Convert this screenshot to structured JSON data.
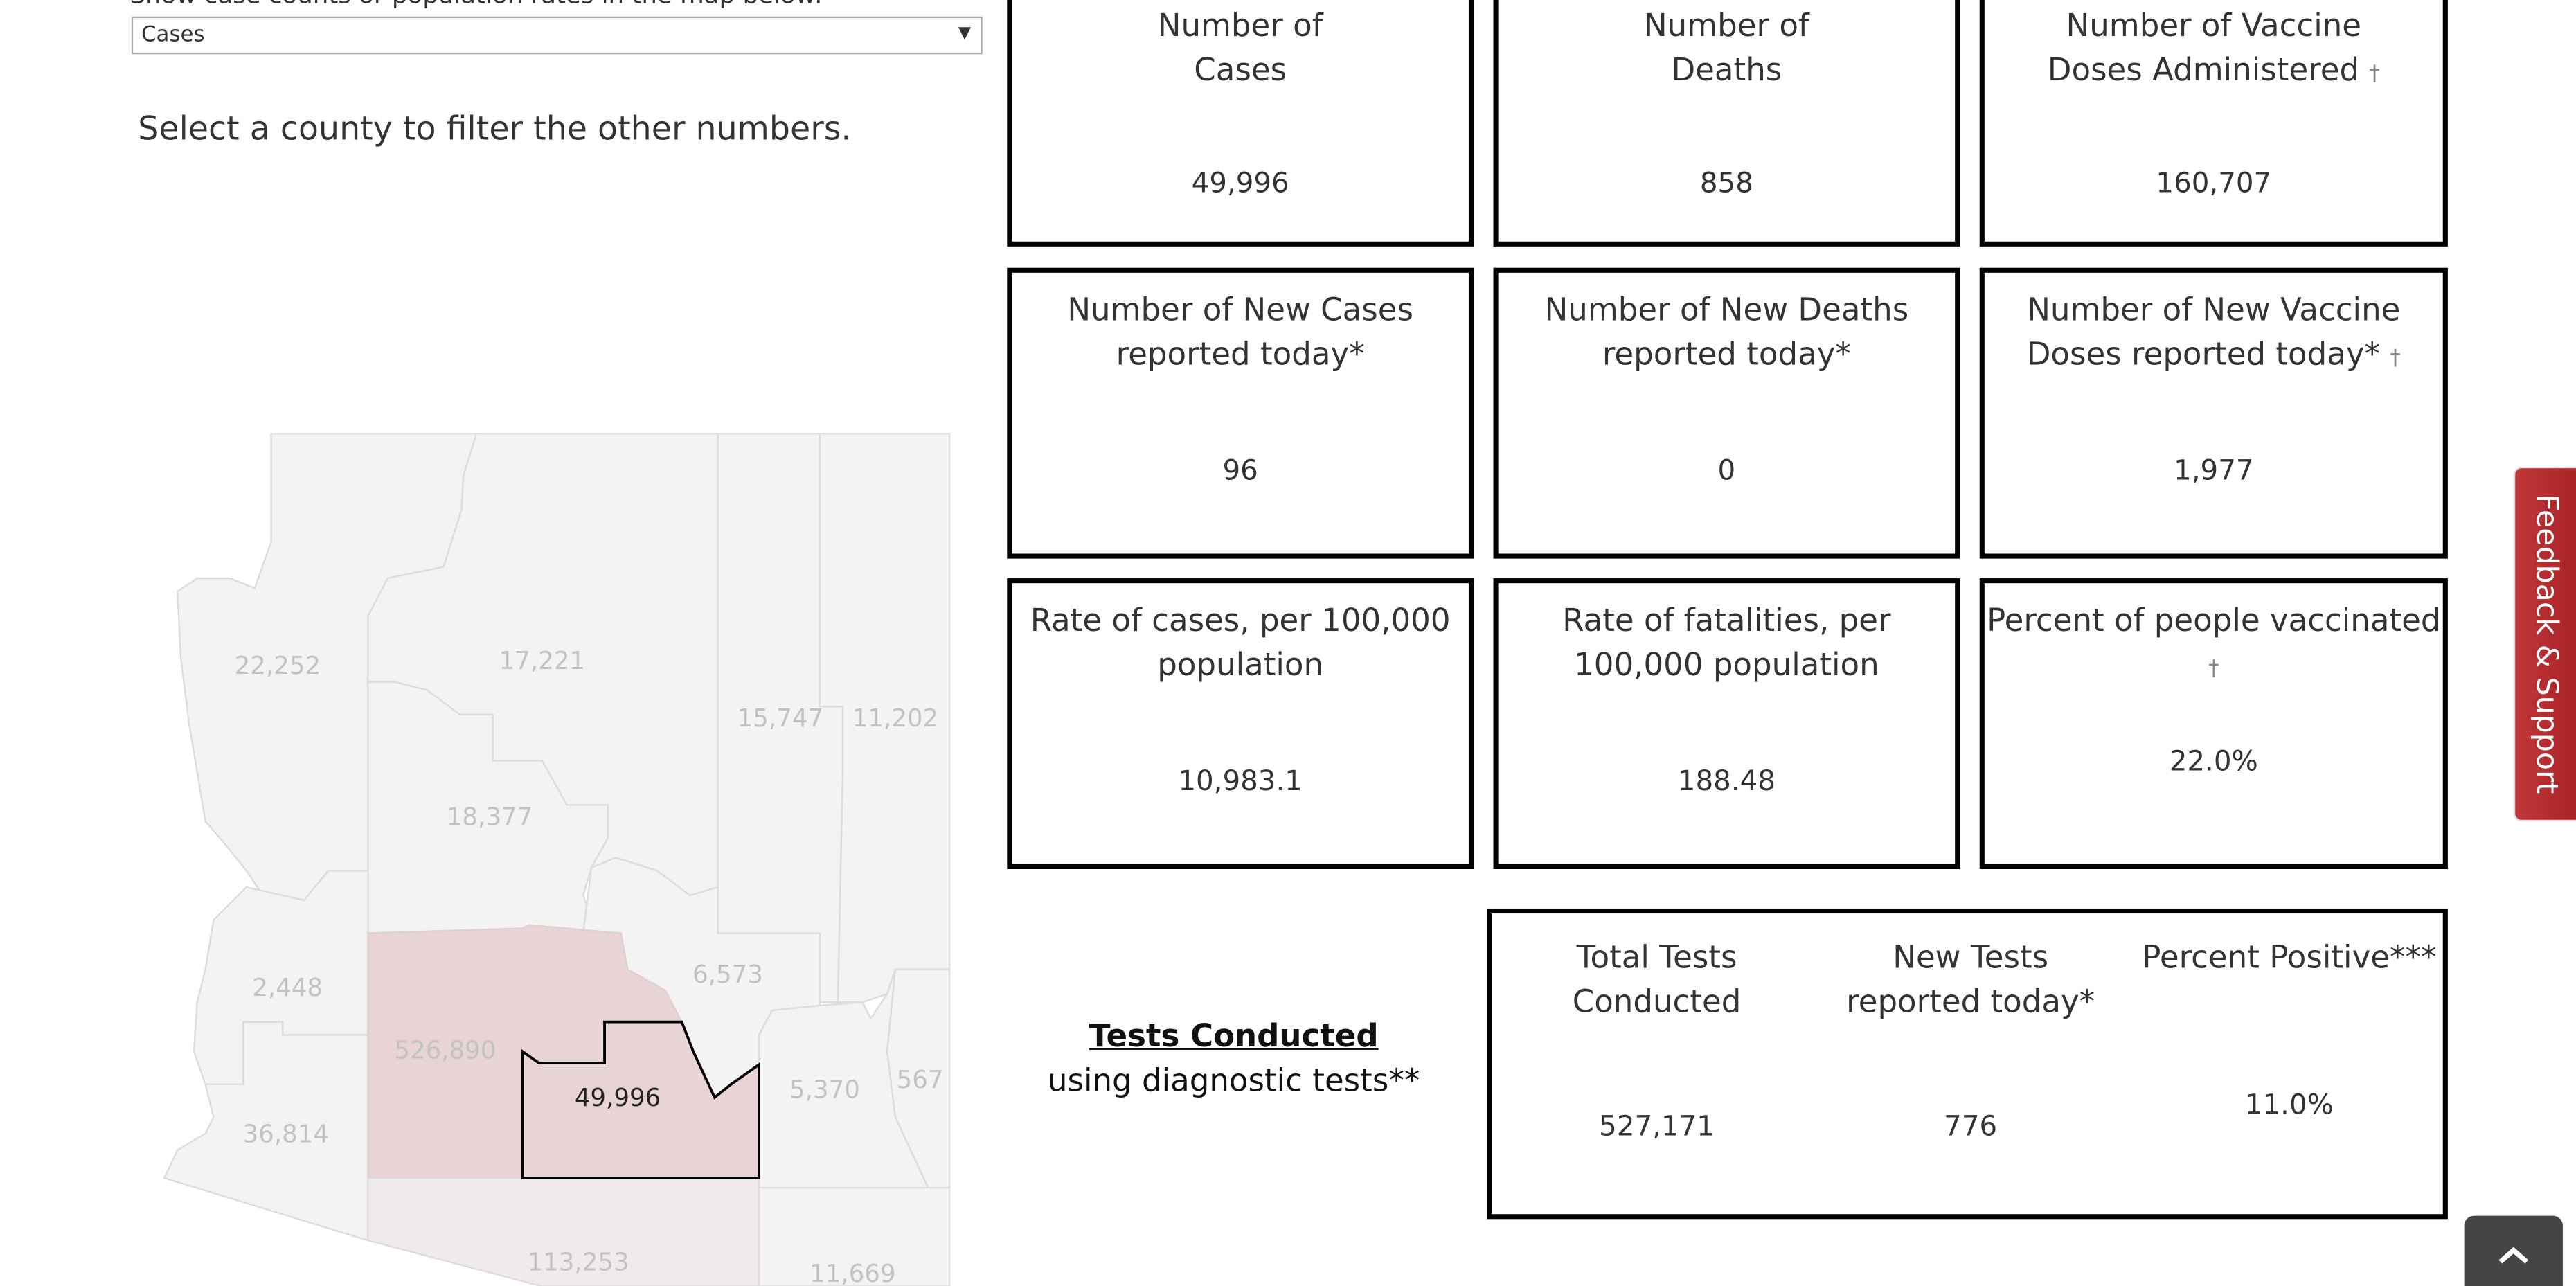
{
  "filter": {
    "header": "Show case counts or population rates in the map below:",
    "selected": "Cases",
    "hint": "Select a county to filter the other numbers."
  },
  "map": {
    "labels": [
      "22,252",
      "17,221",
      "15,747",
      "11,202",
      "18,377",
      "2,448",
      "6,573",
      "526,890",
      "49,996",
      "5,370",
      "567",
      "36,814",
      "113,253",
      "11,669"
    ],
    "colors": {
      "base": "#f3f3f3",
      "border": "#dcdcdc",
      "maricopa": "#e8d4d5",
      "pima": "#f0eaeb",
      "selected_outline": "#000000",
      "label": "#c2c2c2"
    }
  },
  "cards": [
    {
      "title1": "Number of",
      "title2": "Cases",
      "value": "49,996"
    },
    {
      "title1": "Number of",
      "title2": "Deaths",
      "value": "858"
    },
    {
      "title1": "Number of Vaccine",
      "title2": "Doses Administered",
      "dagger": "†",
      "value": "160,707"
    },
    {
      "title1": "Number of New Cases",
      "title2": "reported today*",
      "value": "96"
    },
    {
      "title1": "Number of New Deaths",
      "title2": "reported today*",
      "value": "0"
    },
    {
      "title1": "Number of New Vaccine",
      "title2": "Doses reported today*",
      "dagger": "†",
      "value": "1,977"
    },
    {
      "title1": "Rate of cases, per 100,000",
      "title2": "population",
      "value": "10,983.1"
    },
    {
      "title1": "Rate of fatalities, per",
      "title2": "100,000 population",
      "value": "188.48"
    },
    {
      "title1": "Percent of people vaccinated",
      "title2": "",
      "dagger": "†",
      "value": "22.0%"
    }
  ],
  "tests": {
    "label": "Tests Conducted",
    "sublabel": "using diagnostic tests**",
    "cols": [
      {
        "title1": "Total Tests",
        "title2": "Conducted",
        "value": "527,171"
      },
      {
        "title1": "New Tests",
        "title2": "reported today*",
        "value": "776"
      },
      {
        "title1": "Percent Positive***",
        "title2": "",
        "value": "11.0%"
      }
    ]
  },
  "feedback": {
    "label": "Feedback & Support",
    "color": "#b5282c"
  },
  "scroll_top": {
    "icon": "chevron-up-icon"
  }
}
